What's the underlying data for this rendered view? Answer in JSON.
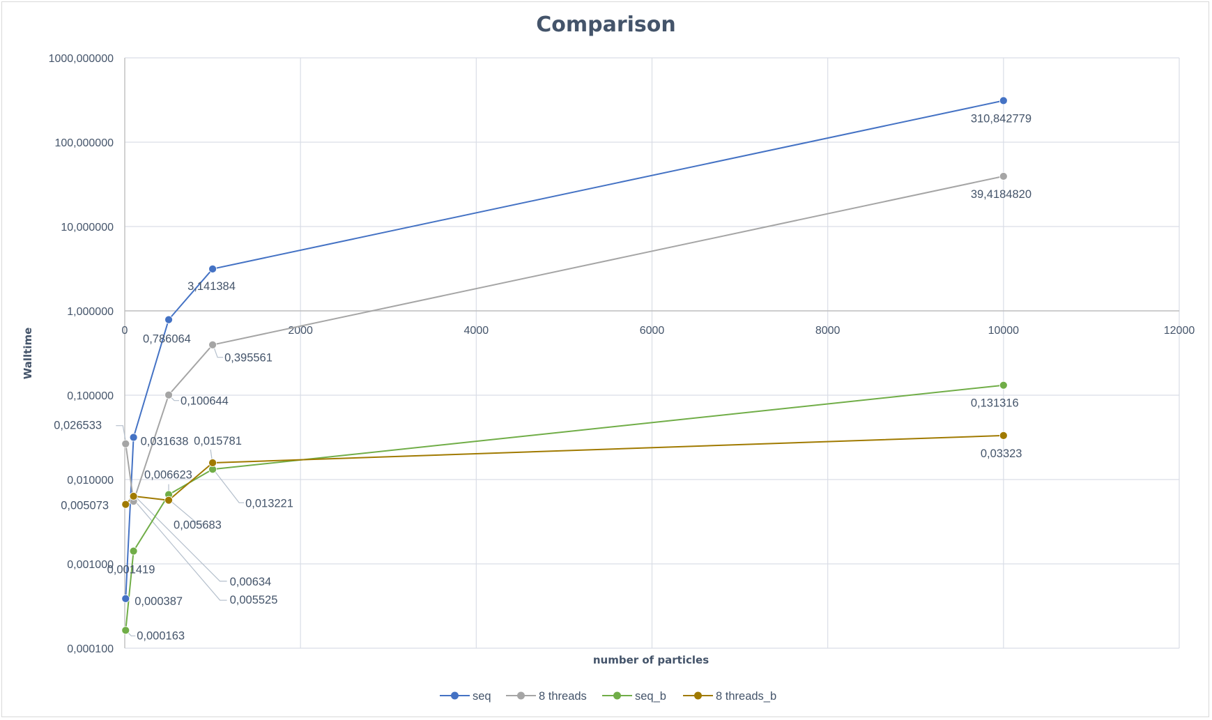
{
  "chart_data": {
    "type": "line",
    "title": "Comparison",
    "xlabel": "number of particles",
    "ylabel": "Walltime",
    "xlim": [
      0,
      12000
    ],
    "ylim": [
      0.0001,
      1000
    ],
    "yscale": "log",
    "grid": true,
    "legend_position": "bottom",
    "x_ticks": [
      "0",
      "2000",
      "4000",
      "6000",
      "8000",
      "10000",
      "12000"
    ],
    "x_tick_values": [
      0,
      2000,
      4000,
      6000,
      8000,
      10000,
      12000
    ],
    "y_ticks": [
      "0,000100",
      "0,001000",
      "0,010000",
      "0,100000",
      "1,000000",
      "10,000000",
      "100,000000",
      "1000,000000"
    ],
    "y_tick_values": [
      0.0001,
      0.001,
      0.01,
      0.1,
      1,
      10,
      100,
      1000
    ],
    "x": [
      10,
      100,
      500,
      1000,
      10000
    ],
    "series": [
      {
        "name": "seq",
        "color": "#4472c4",
        "values": [
          0.000387,
          0.031638,
          0.786064,
          3.141384,
          310.842779
        ],
        "labels": [
          "0,000387",
          "0,031638",
          "0,786064",
          "3,141384",
          "310,842779"
        ]
      },
      {
        "name": "8 threads",
        "color": "#a5a5a5",
        "values": [
          0.026533,
          0.005525,
          0.100644,
          0.395561,
          39.418482
        ],
        "labels": [
          "0,026533",
          "0,005525",
          "0,100644",
          "0,395561",
          "39,4184820"
        ]
      },
      {
        "name": "seq_b",
        "color": "#70ad47",
        "values": [
          0.000163,
          0.001419,
          0.006623,
          0.013221,
          0.131316
        ],
        "labels": [
          "0,000163",
          "0,001419",
          "0,006623",
          "0,013221",
          "0,131316"
        ]
      },
      {
        "name": "8 threads_b",
        "color": "#a07a00",
        "values": [
          0.005073,
          0.00634,
          0.005683,
          0.015781,
          0.03323
        ],
        "labels": [
          "0,005073",
          "0,00634",
          "0,005683",
          "0,015781",
          "0,03323"
        ]
      }
    ]
  }
}
